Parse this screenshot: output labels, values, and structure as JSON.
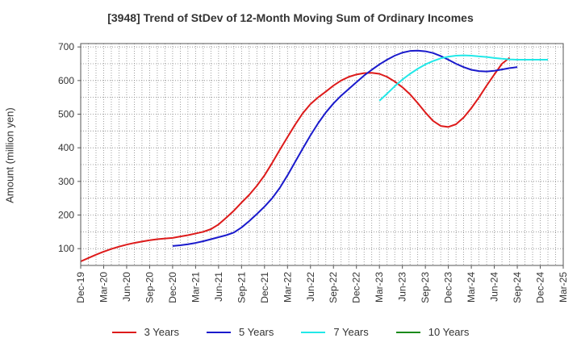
{
  "chart_data": {
    "type": "line",
    "title": "[3948]  Trend of StDev of 12-Month Moving Sum of Ordinary Incomes",
    "xlabel": "",
    "ylabel": "Amount (million yen)",
    "ylim": [
      50,
      710
    ],
    "yticks": [
      100,
      200,
      300,
      400,
      500,
      600,
      700
    ],
    "x_tick_labels": [
      "Dec-19",
      "Mar-20",
      "Jun-20",
      "Sep-20",
      "Dec-20",
      "Mar-21",
      "Jun-21",
      "Sep-21",
      "Dec-21",
      "Mar-22",
      "Jun-22",
      "Sep-22",
      "Dec-22",
      "Mar-23",
      "Jun-23",
      "Sep-23",
      "Dec-23",
      "Mar-24",
      "Jun-24",
      "Sep-24",
      "Dec-24",
      "Mar-25"
    ],
    "series": [
      {
        "name": "3 Years",
        "color": "#dd1a1a",
        "start_index": 0,
        "values": [
          62,
          72,
          82,
          91,
          99,
          106,
          112,
          117,
          121,
          125,
          128,
          130,
          132,
          136,
          140,
          145,
          150,
          158,
          172,
          192,
          213,
          237,
          260,
          287,
          318,
          355,
          394,
          432,
          469,
          503,
          530,
          550,
          567,
          585,
          600,
          611,
          618,
          622,
          623,
          620,
          611,
          597,
          580,
          559,
          533,
          505,
          480,
          465,
          462,
          470,
          490,
          518,
          550,
          585,
          618,
          650,
          668
        ]
      },
      {
        "name": "5 Years",
        "color": "#1a1acc",
        "start_index": 12,
        "values": [
          108,
          110,
          113,
          117,
          122,
          128,
          134,
          140,
          148,
          163,
          182,
          203,
          225,
          250,
          281,
          318,
          358,
          398,
          437,
          473,
          505,
          532,
          555,
          575,
          595,
          615,
          632,
          648,
          662,
          674,
          683,
          688,
          689,
          687,
          682,
          673,
          662,
          650,
          640,
          632,
          628,
          627,
          629,
          633,
          637,
          640
        ]
      },
      {
        "name": "7 Years",
        "color": "#22e8e8",
        "start_index": 39,
        "values": [
          540,
          561,
          583,
          603,
          620,
          635,
          648,
          658,
          666,
          671,
          674,
          675,
          674,
          672,
          670,
          667,
          665,
          663,
          662,
          662,
          662,
          662,
          662
        ]
      },
      {
        "name": "10 Years",
        "color": "#1a8a1a",
        "start_index": 0,
        "values": []
      }
    ]
  }
}
